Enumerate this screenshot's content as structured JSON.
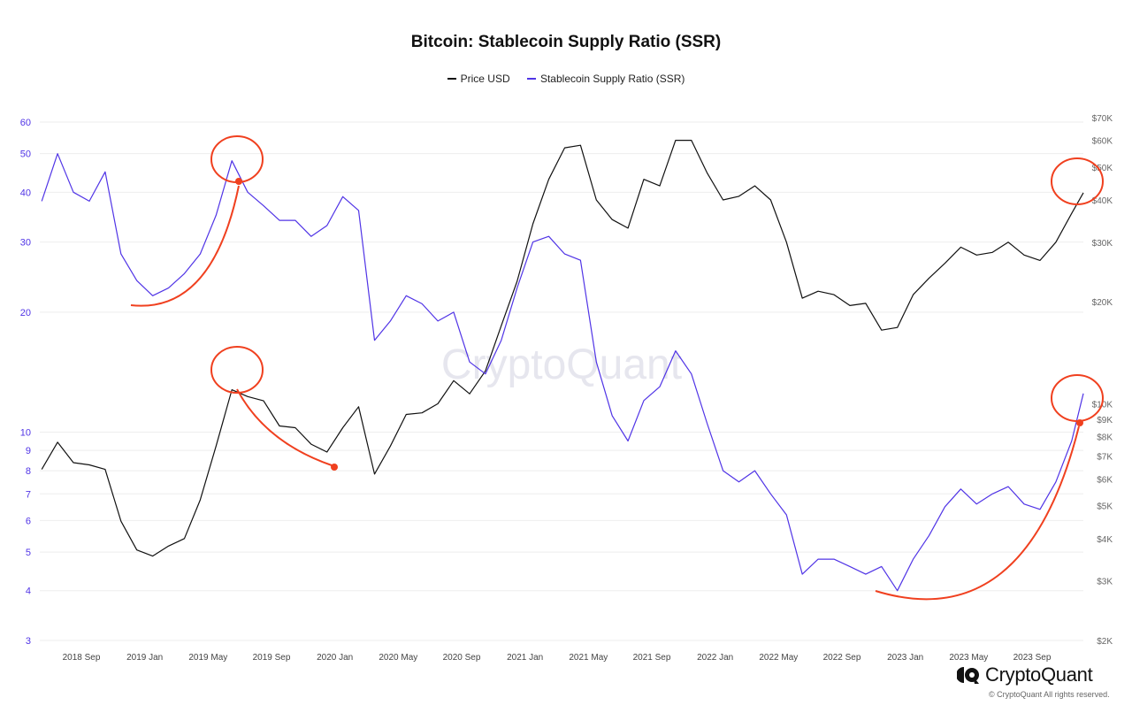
{
  "chart_data": {
    "type": "line",
    "title": "Bitcoin: Stablecoin Supply Ratio (SSR)",
    "watermark": "CryptoQuant",
    "legend_placement": "top-center",
    "grid": true,
    "x": [
      "2018-06",
      "2018-07",
      "2018-08",
      "2018-09",
      "2018-10",
      "2018-11",
      "2018-12",
      "2019-01",
      "2019-02",
      "2019-03",
      "2019-04",
      "2019-05",
      "2019-06",
      "2019-07",
      "2019-08",
      "2019-09",
      "2019-10",
      "2019-11",
      "2019-12",
      "2020-01",
      "2020-02",
      "2020-03",
      "2020-04",
      "2020-05",
      "2020-06",
      "2020-07",
      "2020-08",
      "2020-09",
      "2020-10",
      "2020-11",
      "2020-12",
      "2021-01",
      "2021-02",
      "2021-03",
      "2021-04",
      "2021-05",
      "2021-06",
      "2021-07",
      "2021-08",
      "2021-09",
      "2021-10",
      "2021-11",
      "2021-12",
      "2022-01",
      "2022-02",
      "2022-03",
      "2022-04",
      "2022-05",
      "2022-06",
      "2022-07",
      "2022-08",
      "2022-09",
      "2022-10",
      "2022-11",
      "2022-12",
      "2023-01",
      "2023-02",
      "2023-03",
      "2023-04",
      "2023-05",
      "2023-06",
      "2023-07",
      "2023-08",
      "2023-09",
      "2023-10",
      "2023-11",
      "2023-12"
    ],
    "x_tick_labels": [
      "2018 Sep",
      "2019 Jan",
      "2019 May",
      "2019 Sep",
      "2020 Jan",
      "2020 May",
      "2020 Sep",
      "2021 Jan",
      "2021 May",
      "2021 Sep",
      "2022 Jan",
      "2022 May",
      "2022 Sep",
      "2023 Jan",
      "2023 May",
      "2023 Sep"
    ],
    "series": [
      {
        "name": "Price USD",
        "axis": "right",
        "color": "#111111",
        "values": [
          6400,
          7700,
          6700,
          6600,
          6400,
          4500,
          3700,
          3550,
          3800,
          4000,
          5200,
          7500,
          11000,
          10500,
          10200,
          8600,
          8500,
          7600,
          7200,
          8500,
          9800,
          6200,
          7500,
          9300,
          9400,
          10000,
          11700,
          10700,
          12500,
          17000,
          23000,
          34000,
          46000,
          57000,
          58000,
          40000,
          35000,
          33000,
          46000,
          44000,
          60000,
          60000,
          48000,
          40000,
          41000,
          44000,
          40000,
          30000,
          20500,
          21500,
          21000,
          19500,
          19800,
          16500,
          16800,
          21000,
          23500,
          26000,
          29000,
          27500,
          28000,
          30000,
          27500,
          26500,
          30000,
          36500,
          42000
        ]
      },
      {
        "name": "Stablecoin Supply Ratio (SSR)",
        "axis": "left",
        "color": "#5034e6",
        "values": [
          38,
          50,
          40,
          38,
          45,
          28,
          24,
          22,
          23,
          25,
          28,
          35,
          48,
          40,
          37,
          34,
          34,
          31,
          33,
          39,
          36,
          17,
          19,
          22,
          21,
          19,
          20,
          15,
          14,
          17,
          23,
          30,
          31,
          28,
          27,
          15,
          11,
          9.5,
          12,
          13,
          16,
          14,
          10.5,
          8,
          7.5,
          8,
          7,
          6.2,
          4.4,
          4.8,
          4.8,
          4.6,
          4.4,
          4.6,
          4.0,
          4.8,
          5.5,
          6.5,
          7.2,
          6.6,
          7.0,
          7.3,
          6.6,
          6.4,
          7.5,
          9.5,
          12.5
        ]
      }
    ],
    "y_left": {
      "scale": "log",
      "range": [
        3,
        62
      ],
      "ticks": [
        "3",
        "4",
        "5",
        "6",
        "7",
        "8",
        "9",
        "10",
        "20",
        "30",
        "40",
        "50",
        "60"
      ],
      "color": "#5034e6"
    },
    "y_right": {
      "scale": "log",
      "range": [
        2000,
        70000
      ],
      "ticks": [
        "$2K",
        "$3K",
        "$4K",
        "$5K",
        "$6K",
        "$7K",
        "$8K",
        "$9K",
        "$10K",
        "$20K",
        "$30K",
        "$40K",
        "$50K",
        "$60K",
        "$70K"
      ],
      "color": "#666666"
    },
    "annotation_color": "#f0401f"
  },
  "legend": {
    "price": "Price USD",
    "ssr": "Stablecoin Supply Ratio (SSR)"
  },
  "footer": {
    "brand": "CryptoQuant",
    "copyright": "© CryptoQuant All rights reserved."
  }
}
